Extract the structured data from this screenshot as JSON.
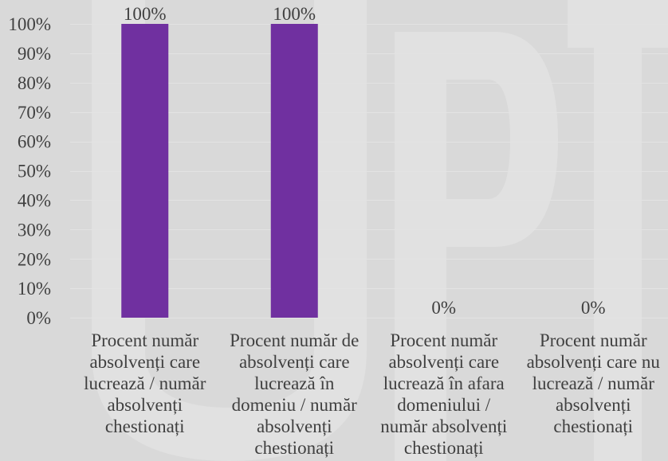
{
  "chart_data": {
    "type": "bar",
    "categories": [
      "Procent număr absolvenți care lucrează / număr absolvenți chestionați",
      "Procent număr de absolvenți care lucrează în domeniu / număr absolvenți chestionați",
      "Procent număr absolvenți care lucrează în afara domeniului / număr absolvenți chestionați",
      "Procent număr absolvenți care nu lucrează / număr absolvenți chestionați"
    ],
    "values": [
      100,
      100,
      0,
      0
    ],
    "data_labels": [
      "100%",
      "100%",
      "0%",
      "0%"
    ],
    "y_ticks": [
      0,
      10,
      20,
      30,
      40,
      50,
      60,
      70,
      80,
      90,
      100
    ],
    "y_tick_labels": [
      "0%",
      "10%",
      "20%",
      "30%",
      "40%",
      "50%",
      "60%",
      "70%",
      "80%",
      "90%",
      "100%"
    ],
    "ylim": [
      0,
      100
    ],
    "grid": true,
    "legend": "none"
  },
  "colors": {
    "background": "#d9d9d9",
    "bar": "#7030a0",
    "text": "#404040",
    "grid": "#e3e3e3",
    "watermark": "#e1e1e1"
  }
}
